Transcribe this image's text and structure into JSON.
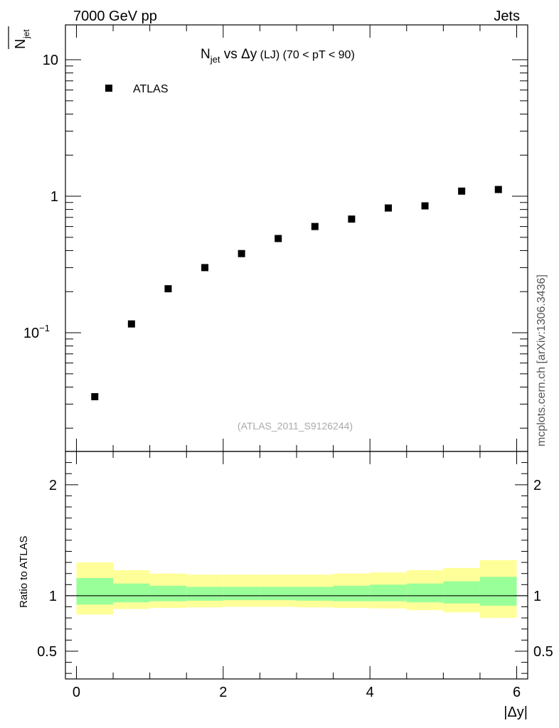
{
  "header": {
    "left": "7000 GeV pp",
    "right": "Jets"
  },
  "side_label": "mcplots.cern.ch [arXiv:1306.3436]",
  "chart_data": [
    {
      "type": "scatter",
      "title_main": "N",
      "title_sub": "jet",
      "title_vs": " vs ",
      "title_var": "Δy",
      "title_extra": " (LJ) (70 < pT <  90)",
      "ylabel_main": "N",
      "ylabel_sub": "jet",
      "yscale": "log",
      "ylim": [
        0.0135,
        18.0
      ],
      "xlim": [
        -0.15,
        6.15
      ],
      "y_ticks": [
        {
          "value": 0.1,
          "base": "10",
          "exp": "−1"
        },
        {
          "value": 1,
          "base": "1",
          "exp": ""
        },
        {
          "value": 10,
          "base": "10",
          "exp": ""
        }
      ],
      "watermark": "(ATLAS_2011_S9126244)",
      "legend": {
        "position": "top-left",
        "entries": [
          "ATLAS"
        ]
      },
      "series": [
        {
          "name": "ATLAS",
          "marker": "square",
          "color": "#000000",
          "x": [
            0.25,
            0.75,
            1.25,
            1.75,
            2.25,
            2.75,
            3.25,
            3.75,
            4.25,
            4.75,
            5.25,
            5.75
          ],
          "y": [
            0.034,
            0.116,
            0.21,
            0.3,
            0.38,
            0.49,
            0.6,
            0.68,
            0.82,
            0.85,
            1.09,
            1.12
          ]
        }
      ]
    },
    {
      "type": "area",
      "ylabel": "Ratio to ATLAS",
      "xlabel": "|Δy|",
      "ylim": [
        0.25,
        2.3
      ],
      "xlim": [
        -0.15,
        6.15
      ],
      "x_ticks": [
        0,
        2,
        4,
        6
      ],
      "x_tick_labels": [
        "0",
        "2",
        "4",
        "6"
      ],
      "y_ticks": [
        0.5,
        1,
        2
      ],
      "y_tick_labels": [
        "0.5",
        "1",
        "2"
      ],
      "reference_line": 1,
      "band_colors": {
        "outer": "#ffff99",
        "inner": "#99ff99"
      },
      "bins": [
        {
          "x_low": 0.0,
          "x_high": 0.5,
          "outer": [
            0.83,
            1.3
          ],
          "inner": [
            0.92,
            1.16
          ]
        },
        {
          "x_low": 0.5,
          "x_high": 1.0,
          "outer": [
            0.88,
            1.23
          ],
          "inner": [
            0.94,
            1.11
          ]
        },
        {
          "x_low": 1.0,
          "x_high": 1.5,
          "outer": [
            0.89,
            1.2
          ],
          "inner": [
            0.95,
            1.09
          ]
        },
        {
          "x_low": 1.5,
          "x_high": 2.0,
          "outer": [
            0.895,
            1.19
          ],
          "inner": [
            0.955,
            1.08
          ]
        },
        {
          "x_low": 2.0,
          "x_high": 2.5,
          "outer": [
            0.9,
            1.19
          ],
          "inner": [
            0.96,
            1.08
          ]
        },
        {
          "x_low": 2.5,
          "x_high": 3.0,
          "outer": [
            0.9,
            1.19
          ],
          "inner": [
            0.96,
            1.08
          ]
        },
        {
          "x_low": 3.0,
          "x_high": 3.5,
          "outer": [
            0.895,
            1.19
          ],
          "inner": [
            0.955,
            1.08
          ]
        },
        {
          "x_low": 3.5,
          "x_high": 4.0,
          "outer": [
            0.89,
            1.2
          ],
          "inner": [
            0.95,
            1.09
          ]
        },
        {
          "x_low": 4.0,
          "x_high": 4.5,
          "outer": [
            0.885,
            1.21
          ],
          "inner": [
            0.95,
            1.1
          ]
        },
        {
          "x_low": 4.5,
          "x_high": 5.0,
          "outer": [
            0.87,
            1.23
          ],
          "inner": [
            0.94,
            1.11
          ]
        },
        {
          "x_low": 5.0,
          "x_high": 5.5,
          "outer": [
            0.85,
            1.25
          ],
          "inner": [
            0.93,
            1.13
          ]
        },
        {
          "x_low": 5.5,
          "x_high": 6.0,
          "outer": [
            0.8,
            1.32
          ],
          "inner": [
            0.91,
            1.17
          ]
        }
      ]
    }
  ]
}
